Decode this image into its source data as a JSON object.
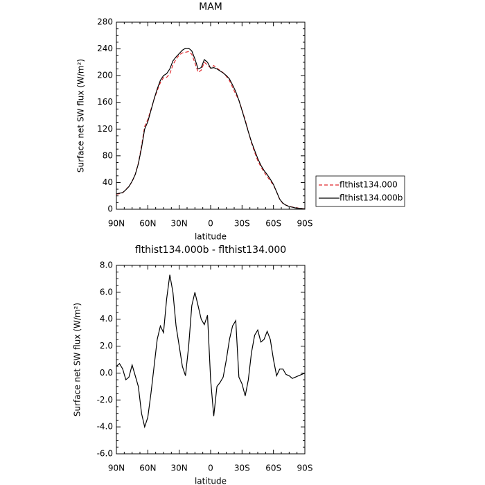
{
  "chart_data": [
    {
      "type": "line",
      "title": "MAM",
      "xlabel": "latitude",
      "ylabel": "Surface net SW flux (W/m²)",
      "x": [
        90,
        87,
        84,
        81,
        78,
        75,
        72,
        69,
        66,
        63,
        60,
        57,
        54,
        51,
        48,
        45,
        42,
        39,
        36,
        33,
        30,
        27,
        24,
        21,
        18,
        15,
        12,
        9,
        6,
        3,
        0,
        -3,
        -6,
        -9,
        -12,
        -15,
        -18,
        -21,
        -24,
        -27,
        -30,
        -33,
        -36,
        -39,
        -42,
        -45,
        -48,
        -51,
        -54,
        -57,
        -60,
        -63,
        -66,
        -69,
        -72,
        -75,
        -78,
        -81,
        -84,
        -87,
        -90
      ],
      "xlim": [
        90,
        -90
      ],
      "xticks": [
        {
          "value": 90,
          "label": "90N"
        },
        {
          "value": 60,
          "label": "60N"
        },
        {
          "value": 30,
          "label": "30N"
        },
        0,
        {
          "value": -30,
          "label": "30S"
        },
        {
          "value": -60,
          "label": "60S"
        },
        {
          "value": -90,
          "label": "90S"
        }
      ],
      "ylim": [
        0,
        280
      ],
      "yticks": [
        0,
        40,
        80,
        120,
        160,
        200,
        240,
        280
      ],
      "legend": "right",
      "series": [
        {
          "name": "flthist134.000",
          "color": "#e0282c",
          "dash": true,
          "values": [
            22.5,
            23.3,
            24.7,
            29.5,
            34.3,
            41.4,
            52.2,
            69,
            95,
            124,
            134.3,
            149.5,
            164.5,
            177.5,
            189.5,
            197,
            197.5,
            202.7,
            216,
            224.5,
            231,
            234,
            235,
            236,
            232,
            219,
            205,
            208,
            220,
            216,
            211.5,
            215,
            211,
            207.7,
            204.3,
            199,
            192.5,
            182.5,
            172,
            163.3,
            148.8,
            133.7,
            116.5,
            99.5,
            85.2,
            72.8,
            63.7,
            55.5,
            48.9,
            42.5,
            36,
            26.2,
            14.7,
            8.7,
            6.1,
            4.2,
            3.4,
            2.3,
            1.7,
            1.1,
            0.5
          ]
        },
        {
          "name": "flthist134.000b",
          "color": "#000000",
          "dash": false,
          "values": [
            23,
            24,
            25,
            29,
            34,
            42,
            52,
            68,
            92,
            120,
            131,
            148,
            165,
            180,
            193,
            200,
            203,
            210,
            222,
            228,
            233,
            238,
            241,
            241,
            237,
            225,
            210,
            212,
            224,
            220,
            211,
            212,
            210,
            207,
            204,
            200,
            195,
            186,
            176,
            163,
            148,
            132,
            116,
            101,
            88,
            76,
            66,
            58,
            52,
            45,
            37,
            26,
            15,
            9,
            6,
            4,
            3,
            2,
            1.5,
            1,
            0.5
          ]
        }
      ]
    },
    {
      "type": "line",
      "title": "flthist134.000b - flthist134.000",
      "xlabel": "latitude",
      "ylabel": "Surface net SW flux (W/m²)",
      "x": [
        90,
        87,
        84,
        81,
        78,
        75,
        72,
        69,
        66,
        63,
        60,
        57,
        54,
        51,
        48,
        45,
        42,
        39,
        36,
        33,
        30,
        27,
        24,
        21,
        18,
        15,
        12,
        9,
        6,
        3,
        0,
        -3,
        -6,
        -9,
        -12,
        -15,
        -18,
        -21,
        -24,
        -27,
        -30,
        -33,
        -36,
        -39,
        -42,
        -45,
        -48,
        -51,
        -54,
        -57,
        -60,
        -63,
        -66,
        -69,
        -72,
        -75,
        -78,
        -81,
        -84,
        -87,
        -90
      ],
      "xlim": [
        90,
        -90
      ],
      "xticks": [
        {
          "value": 90,
          "label": "90N"
        },
        {
          "value": 60,
          "label": "60N"
        },
        {
          "value": 30,
          "label": "30N"
        },
        0,
        {
          "value": -30,
          "label": "30S"
        },
        {
          "value": -60,
          "label": "60S"
        },
        {
          "value": -90,
          "label": "90S"
        }
      ],
      "ylim": [
        -6,
        8
      ],
      "yticks": [
        {
          "value": -6,
          "label": "-6.0"
        },
        {
          "value": -4,
          "label": "-4.0"
        },
        {
          "value": -2,
          "label": "-2.0"
        },
        {
          "value": 0,
          "label": "0.0"
        },
        {
          "value": 2,
          "label": "2.0"
        },
        {
          "value": 4,
          "label": "4.0"
        },
        {
          "value": 6,
          "label": "6.0"
        },
        {
          "value": 8,
          "label": "8.0"
        }
      ],
      "series": [
        {
          "color": "#000000",
          "dash": false,
          "values": [
            0.5,
            0.7,
            0.3,
            -0.5,
            -0.3,
            0.6,
            -0.2,
            -1.0,
            -3.0,
            -4.0,
            -3.3,
            -1.5,
            0.5,
            2.5,
            3.5,
            3.0,
            5.5,
            7.3,
            6.0,
            3.5,
            2.0,
            0.5,
            -0.2,
            2.0,
            5.0,
            6.0,
            5.0,
            4.0,
            3.6,
            4.3,
            -0.5,
            -3.2,
            -1.0,
            -0.7,
            -0.3,
            1.0,
            2.5,
            3.5,
            3.9,
            -0.3,
            -0.8,
            -1.7,
            -0.5,
            1.5,
            2.8,
            3.2,
            2.3,
            2.5,
            3.1,
            2.5,
            1.0,
            -0.2,
            0.3,
            0.3,
            -0.1,
            -0.2,
            -0.4,
            -0.3,
            -0.2,
            -0.1,
            0.0
          ]
        }
      ]
    }
  ]
}
